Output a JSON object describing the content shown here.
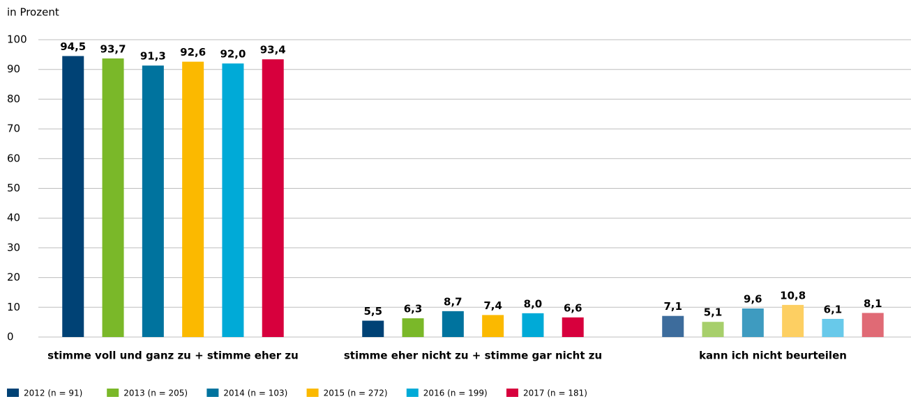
{
  "chart_data": {
    "type": "bar",
    "y_axis_label": "in Prozent",
    "categories": [
      "stimme voll und ganz zu + stimme eher zu",
      "stimme eher nicht zu + stimme gar nicht zu",
      "kann ich nicht beurteilen"
    ],
    "series": [
      {
        "name": "2012 (n = 91)",
        "color": "#004275",
        "colors": [
          "#004275",
          "#004275",
          "#3d6c9c"
        ],
        "values": [
          94.5,
          5.5,
          7.1
        ],
        "value_labels": [
          "94,5",
          "5,5",
          "7,1"
        ]
      },
      {
        "name": "2013 (n = 205)",
        "color": "#7ab829",
        "colors": [
          "#7ab829",
          "#7ab829",
          "#a7cf6b"
        ],
        "values": [
          93.7,
          6.3,
          5.1
        ],
        "value_labels": [
          "93,7",
          "6,3",
          "5,1"
        ]
      },
      {
        "name": "2014 (n = 103)",
        "color": "#00739e",
        "colors": [
          "#00739e",
          "#00739e",
          "#3e9bc0"
        ],
        "values": [
          91.3,
          8.7,
          9.6
        ],
        "value_labels": [
          "91,3",
          "8,7",
          "9,6"
        ]
      },
      {
        "name": "2015 (n = 272)",
        "color": "#fbb900",
        "colors": [
          "#fbb900",
          "#fbb900",
          "#fdcf62"
        ],
        "values": [
          92.6,
          7.4,
          10.8
        ],
        "value_labels": [
          "92,6",
          "7,4",
          "10,8"
        ]
      },
      {
        "name": "2016 (n = 199)",
        "color": "#00aad7",
        "colors": [
          "#00aad7",
          "#00aad7",
          "#68c9ea"
        ],
        "values": [
          92.0,
          8.0,
          6.1
        ],
        "value_labels": [
          "92,0",
          "8,0",
          "6,1"
        ]
      },
      {
        "name": "2017 (n = 181)",
        "color": "#d7003d",
        "colors": [
          "#d7003d",
          "#d7003d",
          "#e06a75"
        ],
        "values": [
          93.4,
          6.6,
          8.1
        ],
        "value_labels": [
          "93,4",
          "6,6",
          "8,1"
        ]
      }
    ],
    "ylim": [
      0,
      100
    ],
    "yticks": [
      0,
      10,
      20,
      30,
      40,
      50,
      60,
      70,
      80,
      90,
      100
    ],
    "grid": true,
    "legend": "bottom"
  }
}
